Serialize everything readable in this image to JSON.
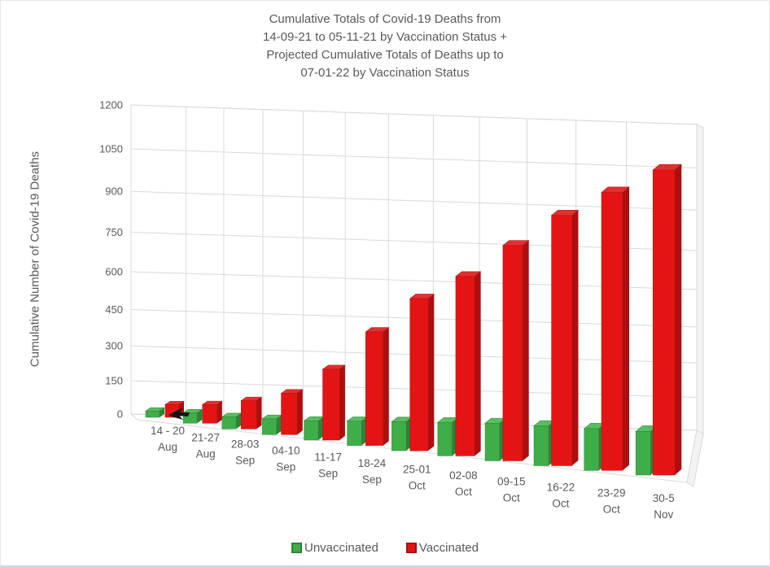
{
  "chart": {
    "title_lines": [
      "Cumulative Totals of Covid-19 Deaths from",
      "14-09-21 to 05-11-21 by Vaccination Status +",
      "Projected Cumulative Totals of Deaths up to",
      "07-01-22 by Vaccination Status"
    ]
  },
  "chart_data": {
    "type": "bar",
    "subtype": "3d-clustered-column",
    "title": "Cumulative Totals of Covid-19 Deaths from 14-09-21 to 05-11-21 by Vaccination Status + Projected Cumulative Totals of Deaths up to 07-01-22 by Vaccination Status",
    "categories": [
      "14 - 20 Aug",
      "21-27 Aug",
      "28-03 Sep",
      "04-10 Sep",
      "11-17 Sep",
      "18-24 Sep",
      "25-01 Oct",
      "02-08 Oct",
      "09-15 Oct",
      "16-22 Oct",
      "23-29 Oct",
      "30-5 Nov"
    ],
    "category_lines": [
      [
        "14 - 20",
        "Aug"
      ],
      [
        "21-27",
        "Aug"
      ],
      [
        "28-03",
        "Sep"
      ],
      [
        "04-10",
        "Sep"
      ],
      [
        "11-17",
        "Sep"
      ],
      [
        "18-24",
        "Sep"
      ],
      [
        "25-01",
        "Oct"
      ],
      [
        "02-08",
        "Oct"
      ],
      [
        "09-15",
        "Oct"
      ],
      [
        "16-22",
        "Oct"
      ],
      [
        "23-29",
        "Oct"
      ],
      [
        "30-5",
        "Nov"
      ]
    ],
    "series": [
      {
        "name": "Unvaccinated",
        "color": "#3FAE49",
        "side_color": "#2E8236",
        "top_color": "#58BE62",
        "values": [
          15,
          25,
          30,
          40,
          50,
          65,
          80,
          95,
          110,
          120,
          130,
          140
        ]
      },
      {
        "name": "Vaccinated",
        "color": "#E51414",
        "side_color": "#AD0E0E",
        "top_color": "#E03030",
        "values": [
          30,
          45,
          70,
          105,
          185,
          305,
          420,
          510,
          630,
          755,
          865,
          980
        ]
      }
    ],
    "xlabel": "",
    "ylabel": "Cumulative Number of Covid-19 Deaths",
    "ylim": [
      0,
      1200
    ],
    "yticks": [
      0,
      150,
      300,
      450,
      600,
      750,
      900,
      1050,
      1200
    ],
    "grid": true,
    "legend_position": "bottom",
    "text_color": "#595959",
    "gridline_color": "#D9D9D9"
  }
}
